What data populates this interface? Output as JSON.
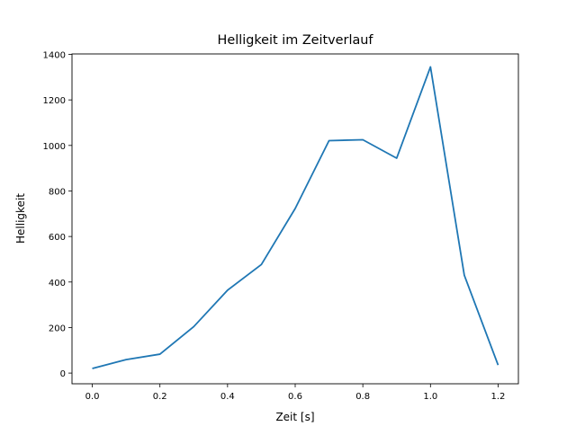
{
  "chart_data": {
    "type": "line",
    "title": "Helligkeit im Zeitverlauf",
    "xlabel": "Zeit [s]",
    "ylabel": "Helligkeit",
    "x": [
      0.0,
      0.1,
      0.2,
      0.3,
      0.4,
      0.5,
      0.6,
      0.7,
      0.8,
      0.9,
      1.0,
      1.1,
      1.2
    ],
    "series": [
      {
        "name": "Helligkeit",
        "color": "#1f77b4",
        "values": [
          20,
          59,
          83,
          204,
          364,
          477,
          723,
          1021,
          1025,
          944,
          1345,
          430,
          35
        ]
      }
    ],
    "xlim": [
      -0.06,
      1.26
    ],
    "ylim": [
      -47,
      1402
    ],
    "xticks": [
      0.0,
      0.2,
      0.4,
      0.6,
      0.8,
      1.0,
      1.2
    ],
    "xtick_labels": [
      "0.0",
      "0.2",
      "0.4",
      "0.6",
      "0.8",
      "1.0",
      "1.2"
    ],
    "yticks": [
      0,
      200,
      400,
      600,
      800,
      1000,
      1200,
      1400
    ],
    "ytick_labels": [
      "0",
      "200",
      "400",
      "600",
      "800",
      "1000",
      "1200",
      "1400"
    ],
    "grid": false,
    "legend": "none"
  }
}
